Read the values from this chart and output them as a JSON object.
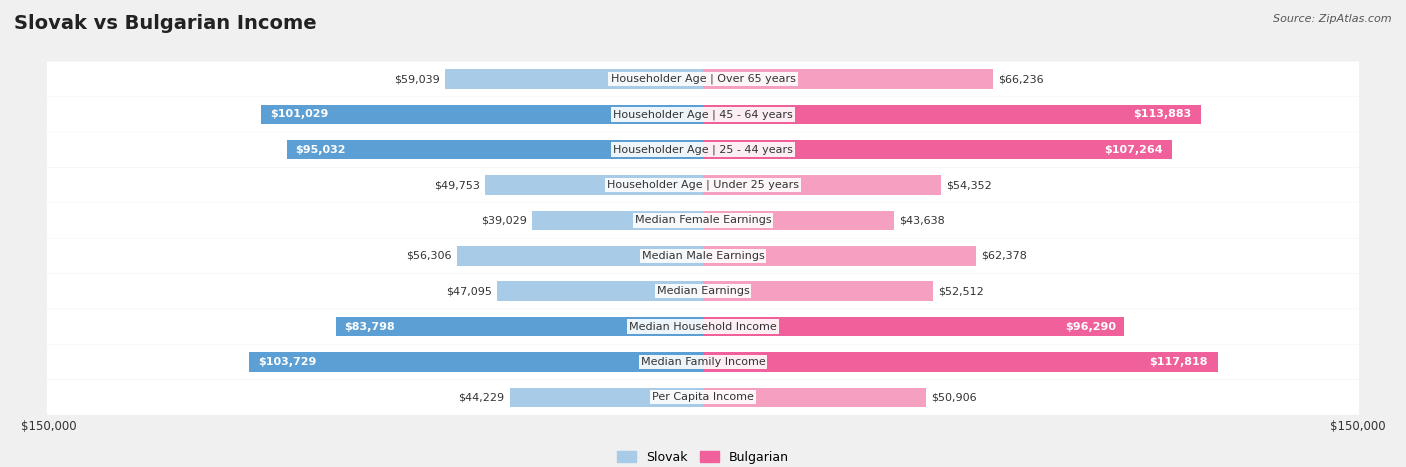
{
  "title": "Slovak vs Bulgarian Income",
  "source": "Source: ZipAtlas.com",
  "categories": [
    "Per Capita Income",
    "Median Family Income",
    "Median Household Income",
    "Median Earnings",
    "Median Male Earnings",
    "Median Female Earnings",
    "Householder Age | Under 25 years",
    "Householder Age | 25 - 44 years",
    "Householder Age | 45 - 64 years",
    "Householder Age | Over 65 years"
  ],
  "slovak_values": [
    44229,
    103729,
    83798,
    47095,
    56306,
    39029,
    49753,
    95032,
    101029,
    59039
  ],
  "bulgarian_values": [
    50906,
    117818,
    96290,
    52512,
    62378,
    43638,
    54352,
    107264,
    113883,
    66236
  ],
  "slovak_color_light": "#a8cce8",
  "slovak_color_dark": "#5b9fd4",
  "bulgarian_color_light": "#f5a0c0",
  "bulgarian_color_dark": "#f0609a",
  "max_value": 150000,
  "background_color": "#f0f0f0",
  "xlabel_left": "$150,000",
  "xlabel_right": "$150,000",
  "legend_slovak": "Slovak",
  "legend_bulgarian": "Bulgarian",
  "title_fontsize": 14,
  "value_fontsize": 8,
  "category_fontsize": 8,
  "dark_threshold": 70000
}
